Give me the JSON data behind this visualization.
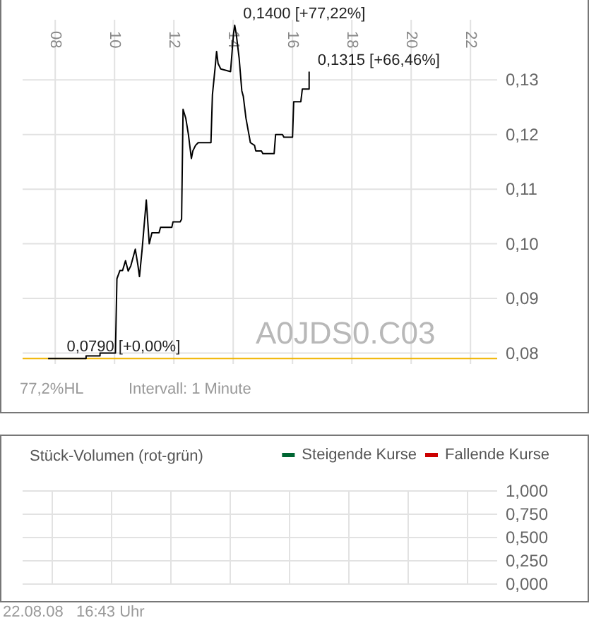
{
  "chart_data": [
    {
      "type": "line",
      "xlim": [
        6.9,
        22.9
      ],
      "ylim": [
        0.078,
        0.141
      ],
      "xticks": [
        {
          "value": 8,
          "label": "08"
        },
        {
          "value": 10,
          "label": "10"
        },
        {
          "value": 12,
          "label": "12"
        },
        {
          "value": 14,
          "label": "14"
        },
        {
          "value": 16,
          "label": "16"
        },
        {
          "value": 18,
          "label": "18"
        },
        {
          "value": 20,
          "label": "20"
        },
        {
          "value": 22,
          "label": "22"
        }
      ],
      "yticks": [
        {
          "value": 0.08,
          "label": "0,08"
        },
        {
          "value": 0.09,
          "label": "0,09"
        },
        {
          "value": 0.1,
          "label": "0,10"
        },
        {
          "value": 0.11,
          "label": "0,11"
        },
        {
          "value": 0.12,
          "label": "0,12"
        },
        {
          "value": 0.13,
          "label": "0,13"
        }
      ],
      "grid": true,
      "legend": false,
      "marker": "none",
      "line_style": "solid",
      "series": [
        {
          "color": "#000000",
          "x": [
            7.76,
            9.04,
            9.04,
            9.51,
            9.51,
            10.03,
            10.08,
            10.18,
            10.27,
            10.37,
            10.46,
            10.55,
            10.7,
            10.79,
            10.84,
            10.93,
            11.07,
            11.17,
            11.26,
            11.5,
            11.55,
            11.93,
            11.97,
            12.21,
            12.26,
            12.31,
            12.4,
            12.49,
            12.59,
            12.64,
            12.73,
            12.82,
            13.25,
            13.3,
            13.39,
            13.44,
            13.49,
            13.58,
            13.91,
            14.01,
            14.05,
            14.1,
            14.2,
            14.29,
            14.34,
            14.43,
            14.53,
            14.58,
            14.72,
            14.76,
            14.95,
            15.0,
            15.38,
            15.43,
            15.66,
            15.71,
            16.0,
            16.04,
            16.28,
            16.33,
            16.56,
            16.56
          ],
          "values": [
            0.079,
            0.079,
            0.0795,
            0.0795,
            0.08,
            0.08,
            0.0936,
            0.0951,
            0.0951,
            0.0969,
            0.095,
            0.096,
            0.099,
            0.096,
            0.094,
            0.099,
            0.108,
            0.1,
            0.102,
            0.102,
            0.103,
            0.103,
            0.104,
            0.104,
            0.1045,
            0.1246,
            0.123,
            0.12,
            0.1156,
            0.117,
            0.118,
            0.1185,
            0.1185,
            0.1273,
            0.1322,
            0.1352,
            0.133,
            0.132,
            0.1315,
            0.1384,
            0.14,
            0.1385,
            0.134,
            0.128,
            0.127,
            0.123,
            0.12,
            0.1185,
            0.118,
            0.117,
            0.117,
            0.1165,
            0.1165,
            0.12,
            0.12,
            0.1195,
            0.1195,
            0.126,
            0.126,
            0.1283,
            0.1283,
            0.1315
          ]
        }
      ],
      "ref_lines": [
        {
          "axis": "y",
          "value": 0.079,
          "color": "#f0b400"
        }
      ],
      "annotations": [
        {
          "text": "0,1400 [+77,22%]",
          "x": 14.05,
          "y": 0.14
        },
        {
          "text": "0,1315 [+66,46%]",
          "x": 16.56,
          "y": 0.1315
        },
        {
          "text": "0,0790 [+0,00%]",
          "x": 8.1,
          "y": 0.079
        },
        "A0JDS0.C03",
        "77,2%HL",
        "Intervall: 1 Minute"
      ]
    },
    {
      "type": "bar",
      "title": "Stück-Volumen (rot-grün)",
      "categories": [
        null,
        null,
        null,
        null,
        null,
        null,
        null,
        null
      ],
      "ylim": [
        0,
        1
      ],
      "yticks": [
        {
          "value": 0,
          "label": "0,000"
        },
        {
          "value": 0.25,
          "label": "0,250"
        },
        {
          "value": 0.5,
          "label": "0,500"
        },
        {
          "value": 0.75,
          "label": "0,750"
        },
        {
          "value": 1,
          "label": "1,000"
        }
      ],
      "tick_labels": "y",
      "grid": true,
      "legend": "top right",
      "series": [
        {
          "name": "Steigende Kurse",
          "color": "#006633",
          "values": [
            null,
            null,
            null,
            null,
            null,
            null,
            null,
            null
          ]
        },
        {
          "name": "Fallende Kurse",
          "color": "#cc0000",
          "values": [
            null,
            null,
            null,
            null,
            null,
            null,
            null,
            null
          ]
        }
      ],
      "annotations": [
        "22.08.08   16:43 Uhr"
      ]
    }
  ]
}
